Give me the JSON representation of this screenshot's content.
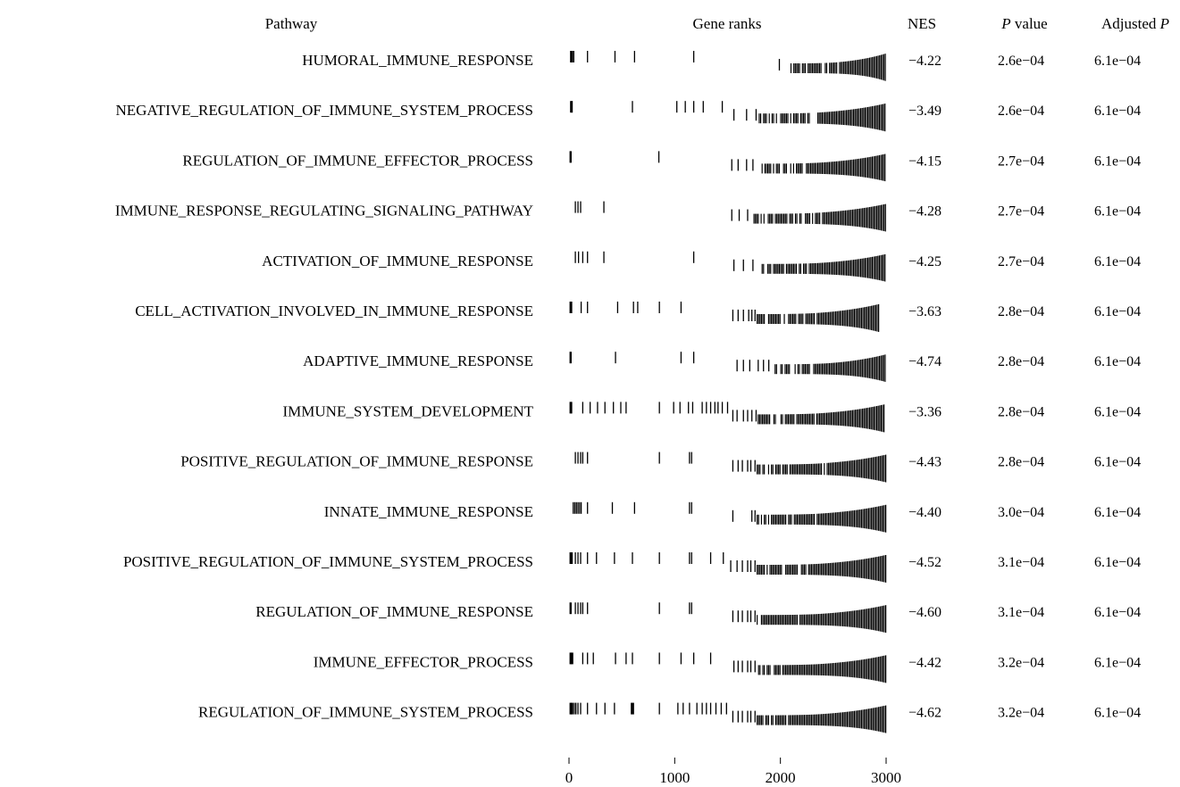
{
  "chart_data": {
    "type": "table",
    "headers": {
      "pathway": "Pathway",
      "gene_ranks": "Gene ranks",
      "nes": "NES",
      "pvalue_italic": "P",
      "pvalue_rest": " value",
      "padj_prefix": "Adjusted ",
      "padj_italic": "P"
    },
    "x_axis": {
      "min": 0,
      "max": 3000,
      "ticks": [
        0,
        1000,
        2000,
        3000
      ]
    },
    "rows": [
      {
        "pathway": "HUMORAL_IMMUNE_RESPONSE",
        "nes": "−4.22",
        "pval": "2.6e−04",
        "padj": "6.1e−04",
        "end": 3000,
        "early": [
          20,
          32,
          45,
          175,
          435,
          620,
          1180,
          1990
        ],
        "start": 2100,
        "density": 0.55
      },
      {
        "pathway": "NEGATIVE_REGULATION_OF_IMMUNE_SYSTEM_PROCESS",
        "nes": "−3.49",
        "pval": "2.6e−04",
        "padj": "6.1e−04",
        "end": 2990,
        "early": [
          20,
          30,
          600,
          1020,
          1100,
          1180,
          1270,
          1450,
          1560,
          1680,
          1770
        ],
        "start": 1800,
        "density": 0.5
      },
      {
        "pathway": "REGULATION_OF_IMMUNE_EFFECTOR_PROCESS",
        "nes": "−4.15",
        "pval": "2.7e−04",
        "padj": "6.1e−04",
        "end": 3000,
        "early": [
          15,
          850,
          1540,
          1600,
          1680,
          1740
        ],
        "start": 1800,
        "density": 0.55
      },
      {
        "pathway": "IMMUNE_RESPONSE_REGULATING_SIGNALING_PATHWAY",
        "nes": "−4.28",
        "pval": "2.7e−04",
        "padj": "6.1e−04",
        "end": 3000,
        "early": [
          60,
          85,
          110,
          330,
          1540,
          1610,
          1690
        ],
        "start": 1750,
        "density": 0.6
      },
      {
        "pathway": "ACTIVATION_OF_IMMUNE_RESPONSE",
        "nes": "−4.25",
        "pval": "2.7e−04",
        "padj": "6.1e−04",
        "end": 3000,
        "early": [
          60,
          90,
          130,
          175,
          330,
          1180,
          1560,
          1650,
          1740
        ],
        "start": 1800,
        "density": 0.6
      },
      {
        "pathway": "CELL_ACTIVATION_INVOLVED_IN_IMMUNE_RESPONSE",
        "nes": "−3.63",
        "pval": "2.8e−04",
        "padj": "6.1e−04",
        "end": 2930,
        "early": [
          15,
          25,
          115,
          175,
          460,
          610,
          650,
          855,
          1060,
          1550,
          1600,
          1650,
          1700,
          1730,
          1760
        ],
        "start": 1780,
        "density": 0.65
      },
      {
        "pathway": "ADAPTIVE_IMMUNE_RESPONSE",
        "nes": "−4.74",
        "pval": "2.8e−04",
        "padj": "6.1e−04",
        "end": 3000,
        "early": [
          15,
          440,
          1060,
          1180,
          1590,
          1650,
          1710,
          1790,
          1840,
          1890
        ],
        "start": 1950,
        "density": 0.55
      },
      {
        "pathway": "IMMUNE_SYSTEM_DEVELOPMENT",
        "nes": "−3.36",
        "pval": "2.8e−04",
        "padj": "6.1e−04",
        "end": 2980,
        "early": [
          15,
          25,
          130,
          200,
          270,
          340,
          420,
          490,
          540,
          855,
          990,
          1050,
          1130,
          1170,
          1260,
          1300,
          1340,
          1380,
          1410,
          1450,
          1500,
          1550,
          1590,
          1650,
          1690,
          1730,
          1770
        ],
        "start": 1790,
        "density": 0.65
      },
      {
        "pathway": "POSITIVE_REGULATION_OF_IMMUNE_RESPONSE",
        "nes": "−4.43",
        "pval": "2.8e−04",
        "padj": "6.1e−04",
        "end": 3000,
        "early": [
          60,
          85,
          110,
          130,
          175,
          855,
          1140,
          1160,
          1550,
          1600,
          1640,
          1690,
          1720,
          1760
        ],
        "start": 1780,
        "density": 0.6
      },
      {
        "pathway": "INNATE_IMMUNE_RESPONSE",
        "nes": "−4.40",
        "pval": "3.0e−04",
        "padj": "6.1e−04",
        "end": 3000,
        "early": [
          40,
          55,
          70,
          85,
          100,
          115,
          175,
          410,
          620,
          1140,
          1160,
          1550,
          1730,
          1760
        ],
        "start": 1780,
        "density": 0.7
      },
      {
        "pathway": "POSITIVE_REGULATION_OF_IMMUNE_SYSTEM_PROCESS",
        "nes": "−4.52",
        "pval": "3.1e−04",
        "padj": "6.1e−04",
        "end": 3000,
        "early": [
          15,
          30,
          60,
          85,
          110,
          175,
          260,
          430,
          600,
          855,
          1140,
          1160,
          1340,
          1460,
          1530,
          1590,
          1640,
          1690,
          1720,
          1760
        ],
        "start": 1780,
        "density": 0.7
      },
      {
        "pathway": "REGULATION_OF_IMMUNE_RESPONSE",
        "nes": "−4.60",
        "pval": "3.1e−04",
        "padj": "6.1e−04",
        "end": 3000,
        "early": [
          15,
          60,
          85,
          110,
          130,
          175,
          855,
          1140,
          1160,
          1550,
          1600,
          1640,
          1690,
          1720,
          1760
        ],
        "start": 1780,
        "density": 0.7
      },
      {
        "pathway": "IMMUNE_EFFECTOR_PROCESS",
        "nes": "−4.42",
        "pval": "3.2e−04",
        "padj": "6.1e−04",
        "end": 3000,
        "early": [
          15,
          25,
          35,
          130,
          175,
          230,
          440,
          540,
          600,
          855,
          1060,
          1180,
          1340,
          1560,
          1600,
          1640,
          1690,
          1720,
          1760
        ],
        "start": 1780,
        "density": 0.75
      },
      {
        "pathway": "REGULATION_OF_IMMUNE_SYSTEM_PROCESS",
        "nes": "−4.62",
        "pval": "3.2e−04",
        "padj": "6.1e−04",
        "end": 3000,
        "early": [
          15,
          25,
          35,
          50,
          65,
          85,
          110,
          175,
          260,
          340,
          430,
          590,
          600,
          610,
          855,
          1030,
          1080,
          1140,
          1210,
          1260,
          1300,
          1340,
          1390,
          1440,
          1490,
          1550,
          1600,
          1640,
          1690,
          1720,
          1760
        ],
        "start": 1780,
        "density": 0.75
      }
    ]
  }
}
